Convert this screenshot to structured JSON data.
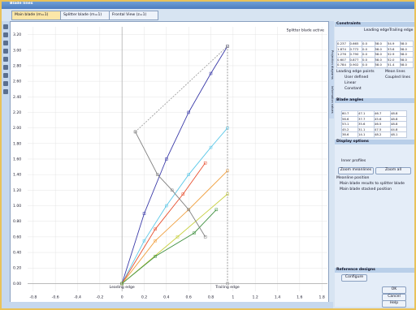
{
  "window": {
    "title": "Blade lines"
  },
  "tabs": [
    "Main blade (m=1)",
    "Splitter blade (m=1)",
    "Frontal View (z=1)"
  ],
  "side_tabs": [
    "Projection diagrams",
    "Information values"
  ],
  "plot": {
    "type": "line",
    "annotation": "Splitter blade active",
    "leading_label": "Leading edge",
    "trailing_label": "Trailing edge",
    "xlim": [
      -0.85,
      1.85
    ],
    "ylim": [
      -0.1,
      3.3
    ],
    "xticks": [
      -0.8,
      -0.6,
      -0.4,
      -0.2,
      0,
      0.2,
      0.4,
      0.6,
      0.8,
      1,
      1.2,
      1.4,
      1.6,
      1.8
    ],
    "yticks": [
      {
        "value": 0,
        "label": "0.00"
      },
      {
        "value": 0.2,
        "label": "0.20"
      },
      {
        "value": 0.4,
        "label": "0.40"
      },
      {
        "value": 0.6,
        "label": "0.60"
      },
      {
        "value": 0.8,
        "label": "0.80"
      },
      {
        "value": 1,
        "label": "1.00"
      },
      {
        "value": 1.2,
        "label": "1.20"
      },
      {
        "value": 1.4,
        "label": "1.40"
      },
      {
        "value": 1.6,
        "label": "1.60"
      },
      {
        "value": 1.8,
        "label": "1.80"
      },
      {
        "value": 2,
        "label": "2.00"
      },
      {
        "value": 2.2,
        "label": "2.20"
      },
      {
        "value": 2.4,
        "label": "2.40"
      },
      {
        "value": 2.6,
        "label": "2.60"
      },
      {
        "value": 2.8,
        "label": "2.80"
      },
      {
        "value": 3,
        "label": "3.00"
      },
      {
        "value": 3.2,
        "label": "3.20"
      }
    ],
    "grid": true,
    "series": [
      {
        "color": "#3a3aa8",
        "x": [
          0,
          0.2,
          0.4,
          0.6,
          0.8,
          0.95
        ],
        "values": [
          0,
          0.9,
          1.6,
          2.2,
          2.7,
          3.05
        ]
      },
      {
        "color": "#5cc8e8",
        "x": [
          0,
          0.2,
          0.4,
          0.6,
          0.8,
          0.95
        ],
        "values": [
          0,
          0.55,
          1.0,
          1.4,
          1.75,
          2.0
        ]
      },
      {
        "color": "#e85030",
        "x": [
          0,
          0.3,
          0.55,
          0.75
        ],
        "values": [
          0,
          0.7,
          1.15,
          1.55
        ]
      },
      {
        "color": "#f0a040",
        "x": [
          0,
          0.3,
          0.6,
          0.95
        ],
        "values": [
          0,
          0.55,
          0.95,
          1.45
        ]
      },
      {
        "color": "#c8d040",
        "x": [
          0,
          0.5,
          0.95
        ],
        "values": [
          0,
          0.6,
          1.15
        ]
      },
      {
        "color": "#409040",
        "x": [
          0,
          0.3,
          0.65,
          0.85
        ],
        "values": [
          0,
          0.35,
          0.65,
          0.95
        ]
      },
      {
        "color": "#a0a0a0",
        "dash": true,
        "x": [
          0.12,
          0.95
        ],
        "values": [
          1.95,
          3.05
        ]
      },
      {
        "color": "#808080",
        "x": [
          0.12,
          0.32,
          0.45,
          0.6,
          0.75
        ],
        "values": [
          1.95,
          1.4,
          1.2,
          0.95,
          0.6
        ]
      },
      {
        "color": "#909090",
        "dash": true,
        "x": [
          0.95,
          0.95
        ],
        "values": [
          0,
          3.05
        ]
      }
    ]
  },
  "constraints": {
    "title": "Constraints",
    "headers": [
      "Leading edge",
      "Trailing edge"
    ],
    "rows": [
      [
        "0.237",
        "0.665",
        "0.0",
        "58.0",
        "54.9",
        "58.0"
      ],
      [
        "1.874",
        "0.772",
        "0.0",
        "58.0",
        "53.6",
        "58.0"
      ],
      [
        "1.276",
        "0.790",
        "0.0",
        "58.0",
        "52.9",
        "58.0"
      ],
      [
        "0.607",
        "0.877",
        "0.0",
        "58.0",
        "52.0",
        "58.0"
      ],
      [
        "0.784",
        "0.902",
        "0.0",
        "58.0",
        "51.4",
        "58.0"
      ]
    ]
  },
  "edge_options": {
    "title": "Leading edge points",
    "options": [
      "User defined",
      "Linear",
      "Constant"
    ]
  },
  "mean_lines": {
    "title": "Mean lines",
    "option": "Coupled lines"
  },
  "blade_angles": {
    "title": "Blade angles",
    "rows": [
      [
        "60.7",
        "47.1",
        "46.7",
        "48.8"
      ],
      [
        "56.6",
        "37.7",
        "45.6",
        "48.8"
      ],
      [
        "53.1",
        "35.6",
        "46.5",
        "48.8"
      ],
      [
        "45.2",
        "31.1",
        "47.5",
        "44.8"
      ],
      [
        "38.6",
        "14.1",
        "48.2",
        "48.1"
      ]
    ]
  },
  "display": {
    "title": "Display options",
    "option": "Inner profiles",
    "buttons": [
      "Zoom meanlines",
      "Zoom all"
    ],
    "meanline_title": "Meanline position",
    "checks": [
      "Main blade results to splitter blade",
      "Main blade stacked position"
    ]
  },
  "reference": {
    "title": "Reference designs",
    "button": "Configure"
  },
  "dialog_buttons": [
    "OK",
    "Cancel",
    "Help"
  ]
}
